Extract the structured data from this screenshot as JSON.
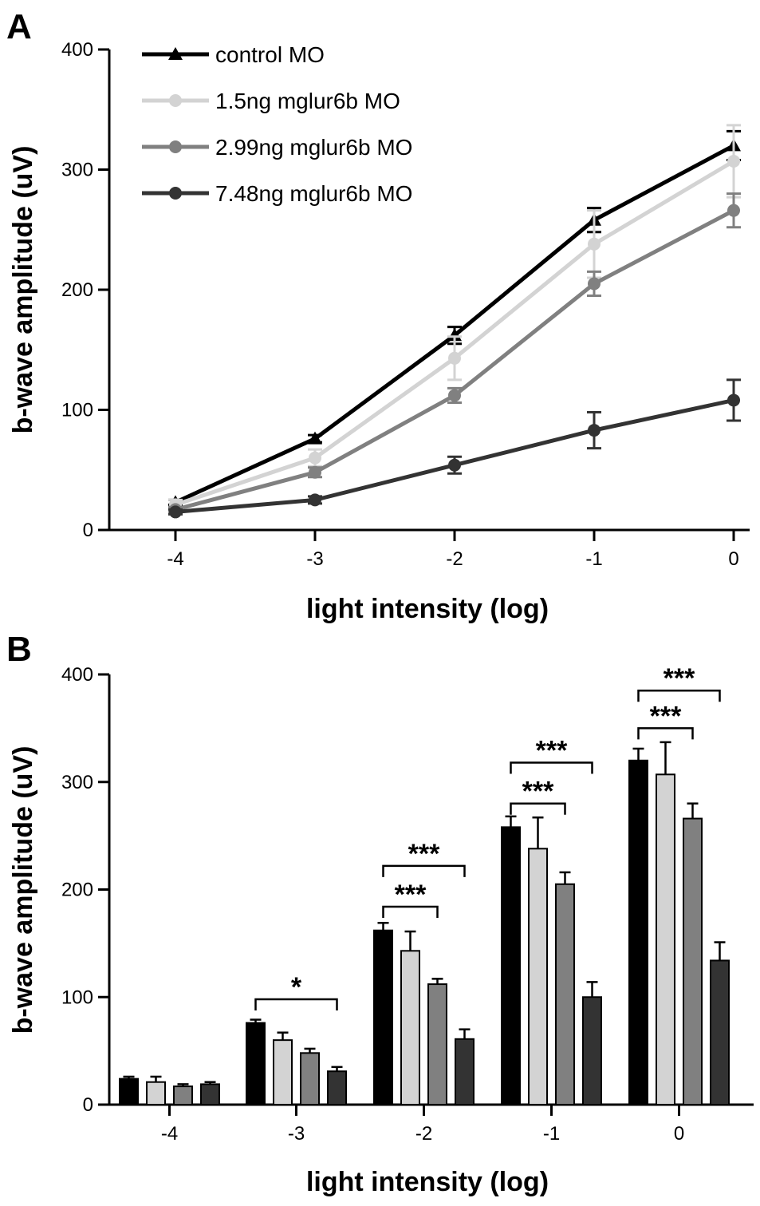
{
  "panel_a_letter": "A",
  "panel_b_letter": "B",
  "colors": {
    "control MO": "#000000",
    "1.5ng mglur6b MO": "#d3d3d3",
    "2.99ng mglur6b MO": "#808080",
    "7.48ng mglur6b MO": "#333333"
  },
  "chart_data": [
    {
      "type": "line",
      "xlabel": "light intensity (log)",
      "ylabel": "b-wave amplitude (uV)",
      "ylim": [
        0,
        400
      ],
      "xlim": [
        -4,
        0
      ],
      "x_ticks": [
        -4,
        -3,
        -2,
        -1,
        0
      ],
      "y_ticks": [
        0,
        100,
        200,
        300,
        400
      ],
      "legend_position": "top-left",
      "grid": false,
      "x": [
        -4,
        -3,
        -2,
        -1,
        0
      ],
      "series": [
        {
          "name": "control MO",
          "marker": "triangle",
          "values": [
            23,
            76,
            162,
            258,
            320
          ],
          "errors": [
            2,
            3,
            7,
            10,
            12
          ]
        },
        {
          "name": "1.5ng mglur6b MO",
          "marker": "circle",
          "values": [
            21,
            60,
            143,
            238,
            307
          ],
          "errors": [
            4,
            7,
            18,
            28,
            30
          ]
        },
        {
          "name": "2.99ng mglur6b MO",
          "marker": "circle",
          "values": [
            17,
            48,
            112,
            205,
            266
          ],
          "errors": [
            2,
            4,
            6,
            10,
            14
          ]
        },
        {
          "name": "7.48ng mglur6b MO",
          "marker": "circle",
          "values": [
            15,
            25,
            54,
            83,
            108
          ],
          "errors": [
            2,
            3,
            7,
            15,
            17
          ]
        }
      ]
    },
    {
      "type": "bar",
      "xlabel": "light intensity (log)",
      "ylabel": "b-wave amplitude (uV)",
      "ylim": [
        0,
        400
      ],
      "y_ticks": [
        0,
        100,
        200,
        300,
        400
      ],
      "categories": [
        "-4",
        "-3",
        "-2",
        "-1",
        "0"
      ],
      "grid": false,
      "series": [
        {
          "name": "control MO",
          "values": [
            24,
            76,
            162,
            258,
            320
          ],
          "errors": [
            2,
            3,
            7,
            10,
            11
          ]
        },
        {
          "name": "1.5ng mglur6b MO",
          "values": [
            21,
            60,
            143,
            238,
            307
          ],
          "errors": [
            5,
            7,
            18,
            29,
            30
          ]
        },
        {
          "name": "2.99ng mglur6b MO",
          "values": [
            17,
            48,
            112,
            205,
            266
          ],
          "errors": [
            2,
            4,
            5,
            11,
            14
          ]
        },
        {
          "name": "7.48ng mglur6b MO",
          "values": [
            19,
            31,
            61,
            100,
            134
          ],
          "errors": [
            2,
            4,
            9,
            14,
            17
          ]
        }
      ],
      "significance": [
        {
          "category": 1,
          "from_series": 0,
          "to_series": 3,
          "y": 98,
          "label": "*"
        },
        {
          "category": 2,
          "from_series": 0,
          "to_series": 2,
          "y": 184,
          "label": "***"
        },
        {
          "category": 2,
          "from_series": 0,
          "to_series": 3,
          "y": 222,
          "label": "***"
        },
        {
          "category": 3,
          "from_series": 0,
          "to_series": 2,
          "y": 280,
          "label": "***"
        },
        {
          "category": 3,
          "from_series": 0,
          "to_series": 3,
          "y": 318,
          "label": "***"
        },
        {
          "category": 4,
          "from_series": 0,
          "to_series": 2,
          "y": 350,
          "label": "***"
        },
        {
          "category": 4,
          "from_series": 0,
          "to_series": 3,
          "y": 385,
          "label": "***"
        }
      ]
    }
  ]
}
